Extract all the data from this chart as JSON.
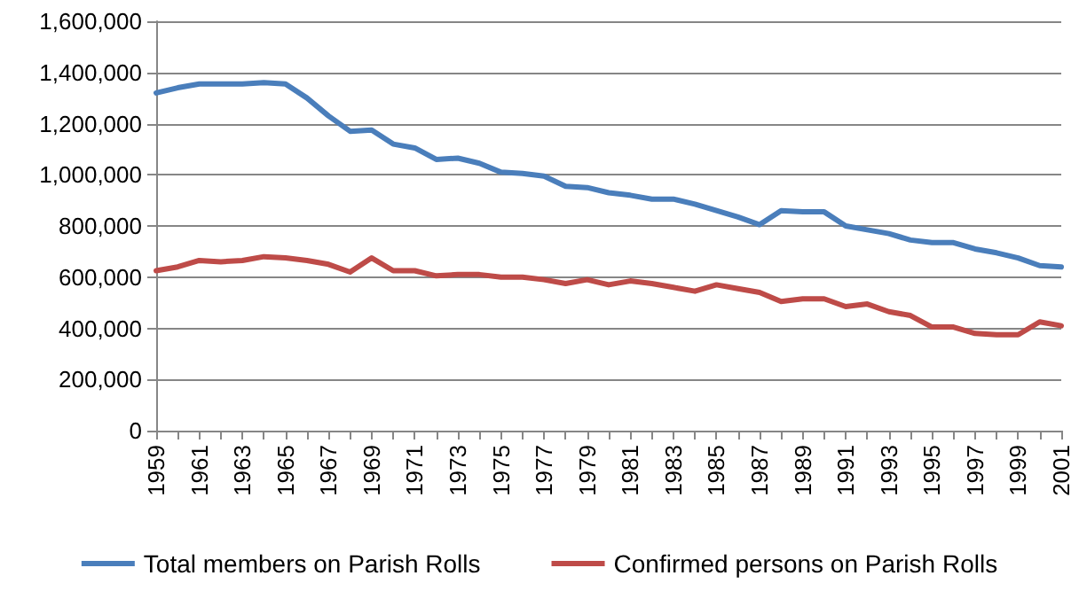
{
  "chart_data": {
    "type": "line",
    "categories": [
      "1959",
      null,
      "1961",
      null,
      "1963",
      null,
      "1965",
      null,
      "1967",
      null,
      "1969",
      null,
      "1971",
      null,
      "1973",
      null,
      "1975",
      null,
      "1977",
      null,
      "1979",
      null,
      "1981",
      null,
      "1983",
      null,
      "1985",
      null,
      "1987",
      null,
      "1989",
      null,
      "1991",
      null,
      "1993",
      null,
      "1995",
      null,
      "1997",
      null,
      "1999",
      null,
      "2001"
    ],
    "series": [
      {
        "name": "Total members on Parish Rolls",
        "color": "#4a7ebb",
        "values": [
          1320000,
          1340000,
          1355000,
          1355000,
          1355000,
          1360000,
          1355000,
          1300000,
          1230000,
          1170000,
          1175000,
          1120000,
          1105000,
          1060000,
          1065000,
          1045000,
          1010000,
          1005000,
          995000,
          955000,
          950000,
          930000,
          920000,
          905000,
          905000,
          885000,
          860000,
          835000,
          805000,
          860000,
          855000,
          855000,
          800000,
          785000,
          770000,
          745000,
          735000,
          735000,
          710000,
          695000,
          675000,
          645000,
          640000
        ]
      },
      {
        "name": "Confirmed persons on Parish Rolls",
        "color": "#be4b48",
        "values": [
          625000,
          640000,
          665000,
          660000,
          665000,
          680000,
          675000,
          665000,
          650000,
          620000,
          675000,
          625000,
          625000,
          605000,
          610000,
          610000,
          600000,
          600000,
          590000,
          575000,
          590000,
          570000,
          585000,
          575000,
          560000,
          545000,
          570000,
          555000,
          540000,
          505000,
          515000,
          515000,
          485000,
          495000,
          465000,
          450000,
          405000,
          405000,
          380000,
          375000,
          375000,
          425000,
          410000
        ]
      }
    ],
    "ylim": [
      0,
      1600000
    ],
    "yticks": [
      0,
      {
        "value": 200000,
        "label": "200,000"
      },
      {
        "value": 400000,
        "label": "400,000"
      },
      {
        "value": 600000,
        "label": "600,000"
      },
      {
        "value": 800000,
        "label": "800,000"
      },
      {
        "value": 1000000,
        "label": "1,000,000"
      },
      {
        "value": 1200000,
        "label": "1,200,000"
      },
      {
        "value": 1400000,
        "label": "1,400,000"
      },
      {
        "value": 1600000,
        "label": "1,600,000"
      }
    ],
    "grid": "y",
    "legend": "bottom",
    "marker": "none",
    "line_style": "solid"
  }
}
